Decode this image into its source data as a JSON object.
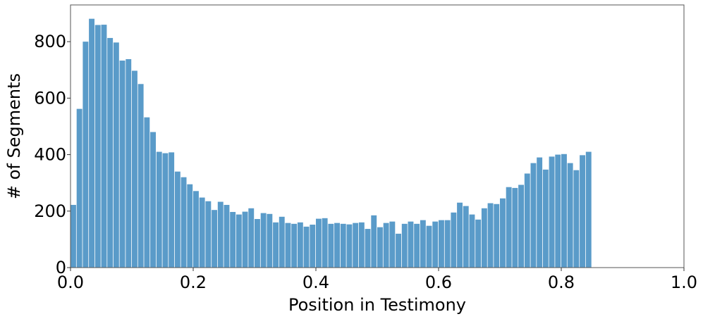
{
  "chart_data": {
    "type": "bar",
    "xlabel": "Position in Testimony",
    "ylabel": "# of Segments",
    "xlim": [
      0.0,
      1.0
    ],
    "ylim": [
      0,
      930
    ],
    "grid": false,
    "bar_color": "#5a9bc9",
    "bin_width": 0.01,
    "x_ticks": [
      {
        "value": 0.0,
        "label": "0.0"
      },
      {
        "value": 0.2,
        "label": "0.2"
      },
      {
        "value": 0.4,
        "label": "0.4"
      },
      {
        "value": 0.6,
        "label": "0.6"
      },
      {
        "value": 0.8,
        "label": "0.8"
      },
      {
        "value": 1.0,
        "label": "1.0"
      }
    ],
    "y_ticks": [
      {
        "value": 0,
        "label": "0"
      },
      {
        "value": 200,
        "label": "200"
      },
      {
        "value": 400,
        "label": "400"
      },
      {
        "value": 600,
        "label": "600"
      },
      {
        "value": 800,
        "label": "800"
      }
    ],
    "values": [
      222,
      562,
      800,
      881,
      859,
      860,
      813,
      797,
      733,
      738,
      697,
      650,
      532,
      480,
      410,
      405,
      408,
      340,
      320,
      295,
      271,
      248,
      235,
      204,
      233,
      222,
      197,
      188,
      198,
      210,
      172,
      193,
      190,
      160,
      180,
      158,
      155,
      160,
      145,
      152,
      173,
      175,
      155,
      158,
      155,
      153,
      158,
      160,
      137,
      185,
      143,
      158,
      163,
      120,
      155,
      163,
      155,
      168,
      148,
      163,
      168,
      168,
      195,
      230,
      218,
      188,
      170,
      210,
      228,
      225,
      245,
      285,
      282,
      293,
      333,
      370,
      390,
      347,
      393,
      400,
      402,
      370,
      345,
      398,
      410
    ]
  }
}
